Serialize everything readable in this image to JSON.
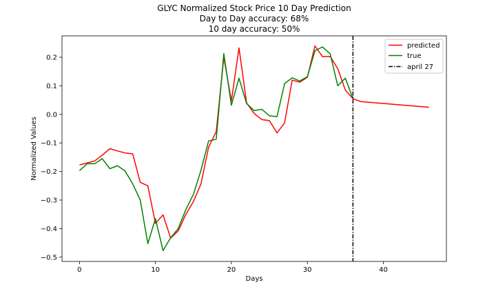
{
  "chart_data": {
    "type": "line",
    "title": [
      "GLYC Normalized Stock Price 10 Day Prediction",
      "Day to Day accuracy: 68%",
      "10 day accuracy: 50%"
    ],
    "xlabel": "Days",
    "ylabel": "Normalized Values",
    "xlim": [
      -2.3,
      48.3
    ],
    "ylim": [
      -0.515,
      0.275
    ],
    "xticks": [
      0,
      10,
      20,
      30,
      40
    ],
    "yticks": [
      -0.5,
      -0.4,
      -0.3,
      -0.2,
      -0.1,
      0.0,
      0.1,
      0.2
    ],
    "ytick_labels": [
      "−0.5",
      "−0.4",
      "−0.3",
      "−0.2",
      "−0.1",
      "0.0",
      "0.1",
      "0.2"
    ],
    "grid": false,
    "legend_position": "top-right",
    "series": [
      {
        "name": "predicted",
        "color": "#ff0000",
        "style": "solid",
        "x": [
          0,
          1,
          2,
          3,
          4,
          5,
          6,
          7,
          8,
          9,
          10,
          11,
          12,
          13,
          14,
          15,
          16,
          17,
          18,
          19,
          20,
          21,
          22,
          23,
          24,
          25,
          26,
          27,
          28,
          29,
          30,
          31,
          32,
          33,
          34,
          35,
          36,
          37,
          46
        ],
        "y": [
          -0.177,
          -0.17,
          -0.163,
          -0.143,
          -0.12,
          -0.128,
          -0.135,
          -0.138,
          -0.238,
          -0.25,
          -0.382,
          -0.352,
          -0.433,
          -0.408,
          -0.35,
          -0.305,
          -0.243,
          -0.115,
          -0.06,
          0.2,
          0.047,
          0.233,
          0.04,
          0.003,
          -0.018,
          -0.022,
          -0.065,
          -0.03,
          0.12,
          0.113,
          0.13,
          0.24,
          0.202,
          0.203,
          0.16,
          0.085,
          0.055,
          0.045,
          0.025
        ]
      },
      {
        "name": "true",
        "color": "#008000",
        "style": "solid",
        "x": [
          0,
          1,
          2,
          3,
          4,
          5,
          6,
          7,
          8,
          9,
          10,
          11,
          12,
          13,
          14,
          15,
          16,
          17,
          18,
          19,
          20,
          21,
          22,
          23,
          24,
          25,
          26,
          27,
          28,
          29,
          30,
          31,
          32,
          33,
          34,
          35,
          36
        ],
        "y": [
          -0.197,
          -0.173,
          -0.173,
          -0.155,
          -0.19,
          -0.18,
          -0.198,
          -0.243,
          -0.3,
          -0.453,
          -0.365,
          -0.477,
          -0.432,
          -0.4,
          -0.333,
          -0.28,
          -0.195,
          -0.093,
          -0.087,
          0.213,
          0.032,
          0.127,
          0.038,
          0.013,
          0.018,
          -0.005,
          -0.008,
          0.108,
          0.128,
          0.117,
          0.132,
          0.223,
          0.236,
          0.212,
          0.1,
          0.127,
          0.055
        ]
      }
    ],
    "annotations": [
      {
        "type": "vline",
        "x": 36,
        "name": "april 27",
        "color": "#000000",
        "style": "dashdot"
      }
    ]
  }
}
